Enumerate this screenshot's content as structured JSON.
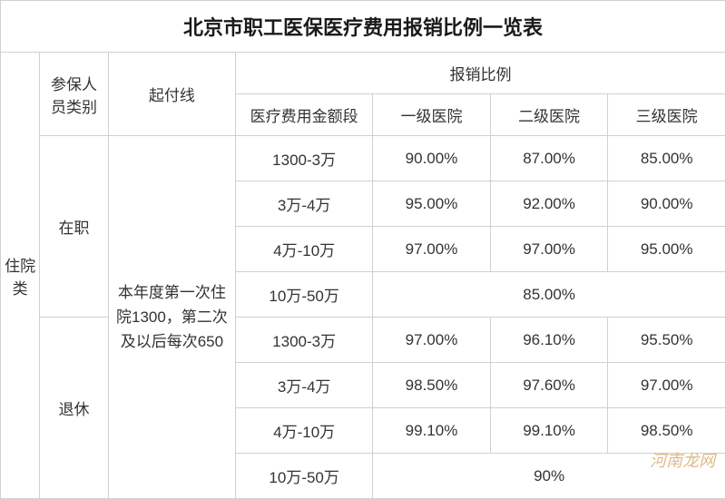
{
  "title": "北京市职工医保医疗费用报销比例一览表",
  "category_vertical": "住院类",
  "headers": {
    "insured_type": "参保人员类别",
    "deductible": "起付线",
    "ratio_group": "报销比例",
    "cost_range": "医疗费用金额段",
    "hospital_lvl1": "一级医院",
    "hospital_lvl2": "二级医院",
    "hospital_lvl3": "三级医院"
  },
  "deductible_text": "本年度第一次住院1300，第二次及以后每次650",
  "groups": {
    "employed": {
      "label": "在职",
      "rows": [
        {
          "range": "1300-3万",
          "h1": "90.00%",
          "h2": "87.00%",
          "h3": "85.00%"
        },
        {
          "range": "3万-4万",
          "h1": "95.00%",
          "h2": "92.00%",
          "h3": "90.00%"
        },
        {
          "range": "4万-10万",
          "h1": "97.00%",
          "h2": "97.00%",
          "h3": "95.00%"
        },
        {
          "range": "10万-50万",
          "merged": "85.00%"
        }
      ]
    },
    "retired": {
      "label": "退休",
      "rows": [
        {
          "range": "1300-3万",
          "h1": "97.00%",
          "h2": "96.10%",
          "h3": "95.50%"
        },
        {
          "range": "3万-4万",
          "h1": "98.50%",
          "h2": "97.60%",
          "h3": "97.00%"
        },
        {
          "range": "4万-10万",
          "h1": "99.10%",
          "h2": "99.10%",
          "h3": "98.50%"
        },
        {
          "range": "10万-50万",
          "merged": "90%"
        }
      ]
    }
  },
  "watermark": "河南龙网",
  "colors": {
    "border": "#d0d0d0",
    "text": "#333333",
    "background": "#ffffff",
    "watermark": "rgba(200,140,60,0.6)"
  },
  "font_sizes": {
    "title": 22,
    "header": 17,
    "cell": 17,
    "watermark": 18
  }
}
